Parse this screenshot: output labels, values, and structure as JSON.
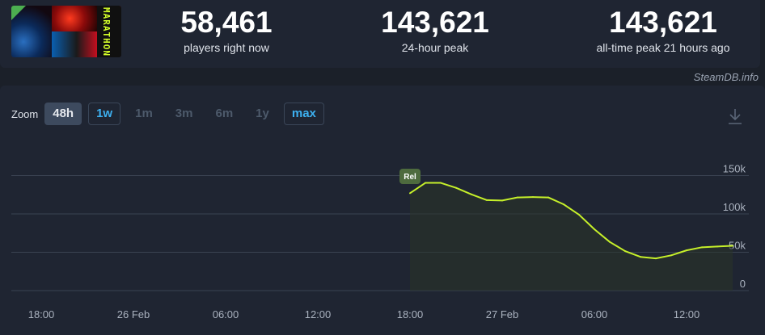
{
  "game": {
    "capsule_icon": "game-capsule-image",
    "capsule_text": "MARATHON"
  },
  "stats": [
    {
      "value": "58,461",
      "label": "players right now"
    },
    {
      "value": "143,621",
      "label": "24-hour peak"
    },
    {
      "value": "143,621",
      "label": "all-time peak 21 hours ago"
    }
  ],
  "watermark": "SteamDB.info",
  "zoom": {
    "label": "Zoom",
    "buttons": [
      {
        "text": "48h",
        "state": "active"
      },
      {
        "text": "1w",
        "state": "linked"
      },
      {
        "text": "1m",
        "state": "disabled"
      },
      {
        "text": "3m",
        "state": "disabled"
      },
      {
        "text": "6m",
        "state": "disabled"
      },
      {
        "text": "1y",
        "state": "disabled"
      },
      {
        "text": "max",
        "state": "linked"
      }
    ]
  },
  "download_icon": "download-icon",
  "colors": {
    "line": "#c6f02a",
    "grid": "#3a4352",
    "panel": "#1f2532",
    "page": "#1b2029",
    "release_marker": "#4e6b3e"
  },
  "chart_data": {
    "type": "line",
    "series": [
      {
        "values": [
          {
            "x": "2025-02-26T18:00",
            "y": 127000
          },
          {
            "x": "2025-02-26T19:00",
            "y": 140500
          },
          {
            "x": "2025-02-26T20:00",
            "y": 140500
          },
          {
            "x": "2025-02-26T21:00",
            "y": 134000
          },
          {
            "x": "2025-02-26T22:00",
            "y": 125500
          },
          {
            "x": "2025-02-26T23:00",
            "y": 118000
          },
          {
            "x": "2025-02-27T00:00",
            "y": 117500
          },
          {
            "x": "2025-02-27T01:00",
            "y": 121500
          },
          {
            "x": "2025-02-27T02:00",
            "y": 122000
          },
          {
            "x": "2025-02-27T03:00",
            "y": 121500
          },
          {
            "x": "2025-02-27T04:00",
            "y": 112500
          },
          {
            "x": "2025-02-27T05:00",
            "y": 99000
          },
          {
            "x": "2025-02-27T06:00",
            "y": 80000
          },
          {
            "x": "2025-02-27T07:00",
            "y": 63500
          },
          {
            "x": "2025-02-27T08:00",
            "y": 51500
          },
          {
            "x": "2025-02-27T09:00",
            "y": 44000
          },
          {
            "x": "2025-02-27T10:00",
            "y": 42000
          },
          {
            "x": "2025-02-27T11:00",
            "y": 46000
          },
          {
            "x": "2025-02-27T12:00",
            "y": 52500
          },
          {
            "x": "2025-02-27T13:00",
            "y": 56500
          },
          {
            "x": "2025-02-27T14:00",
            "y": 57500
          },
          {
            "x": "2025-02-27T15:00",
            "y": 58461
          }
        ]
      }
    ],
    "x_ticks": [
      "18:00",
      "26 Feb",
      "06:00",
      "12:00",
      "18:00",
      "27 Feb",
      "06:00",
      "12:00"
    ],
    "y_ticks": [
      "0",
      "50k",
      "100k",
      "150k"
    ],
    "ylim": [
      0,
      200000
    ],
    "grid": true,
    "annotations": [
      {
        "label": "Rel",
        "x": "2025-02-26T18:00"
      }
    ]
  }
}
